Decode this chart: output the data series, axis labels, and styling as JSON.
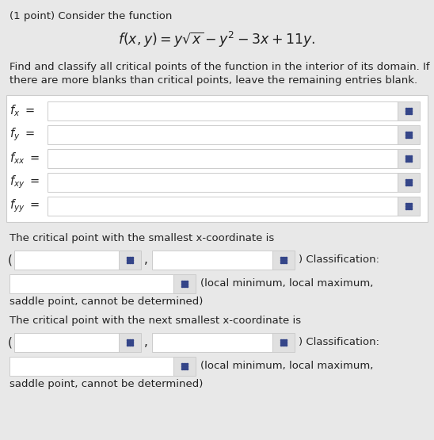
{
  "bg_color": "#e8e8e8",
  "white": "#ffffff",
  "dark_text": "#222222",
  "title_line1": "(1 point) Consider the function",
  "critical_text1": "The critical point with the smallest x-coordinate is",
  "critical_text2": "The critical point with the next smallest x-coordinate is",
  "classification_options": "(local minimum, local maximum,",
  "classification_options2": "saddle point, cannot be determined)",
  "paren_open": "(",
  "paren_close": ") Classification:",
  "comma": ",",
  "body_line1": "Find and classify all critical points of the function in the interior of its domain. If",
  "body_line2": "there are more blanks than critical points, leave the remaining entries blank.",
  "partial_labels_math": [
    "$f_x$",
    "$f_y$",
    "$f_{xx}$",
    "$f_{xy}$",
    "$f_{yy}$"
  ],
  "grid_icon_color": "#334488",
  "grid_bg_color": "#e0e0e0",
  "input_box_color": "#ffffff",
  "input_border_color": "#cccccc"
}
